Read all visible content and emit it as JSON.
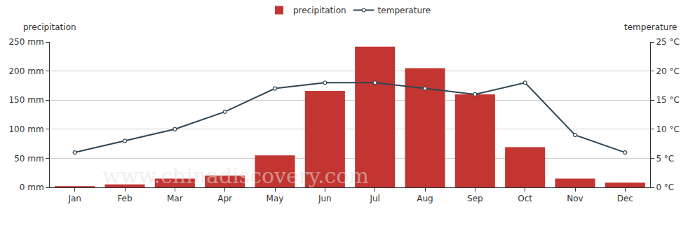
{
  "chart_data": {
    "type": "bar",
    "categories": [
      "Jan",
      "Feb",
      "Mar",
      "Apr",
      "May",
      "Jun",
      "Jul",
      "Aug",
      "Sep",
      "Oct",
      "Nov",
      "Dec"
    ],
    "ylabel": "precipitation",
    "y2label": "temperature",
    "series": [
      {
        "name": "precipitation",
        "type": "bar",
        "color": "#c23531",
        "values": [
          2,
          5,
          15,
          20,
          55,
          166,
          242,
          205,
          160,
          69,
          15,
          8
        ]
      },
      {
        "name": "temperature",
        "type": "line",
        "axis": "y2",
        "color": "#2f4554",
        "marker": "circle",
        "values": [
          6,
          8,
          10,
          13,
          17,
          18,
          18,
          17,
          16,
          18,
          9,
          6
        ]
      }
    ],
    "ylim": [
      0,
      250
    ],
    "yticks": [
      {
        "value": 0,
        "label": "0 mm"
      },
      {
        "value": 50,
        "label": "50 mm"
      },
      {
        "value": 100,
        "label": "100 mm"
      },
      {
        "value": 150,
        "label": "150 mm"
      },
      {
        "value": 200,
        "label": "200 mm"
      },
      {
        "value": 250,
        "label": "250 mm"
      }
    ],
    "y2lim": [
      0,
      25
    ],
    "y2ticks": [
      {
        "value": 0,
        "label": "0 °C"
      },
      {
        "value": 5,
        "label": "5 °C"
      },
      {
        "value": 10,
        "label": "10 °C"
      },
      {
        "value": 15,
        "label": "15 °C"
      },
      {
        "value": 20,
        "label": "20 °C"
      },
      {
        "value": 25,
        "label": "25 °C"
      }
    ],
    "grid": true,
    "legend": "top",
    "annotations": [
      {
        "text": "www.chinadiscovery.com"
      }
    ]
  }
}
